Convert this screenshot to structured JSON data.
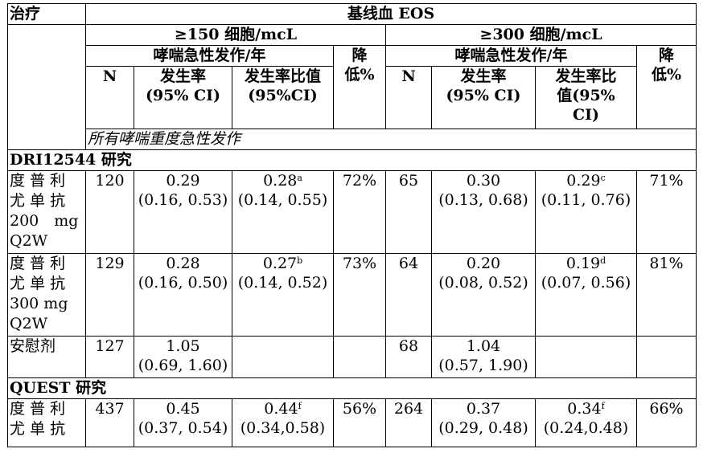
{
  "header": {
    "treatment": "治疗",
    "baseline": "基线血 EOS",
    "group1": "≥150 细胞/mcL",
    "group2": "≥300 细胞/mcL",
    "exacerbation": "哮喘急性发作/年",
    "reduction_l1": "降",
    "reduction_l2": "低%",
    "n": "N",
    "rate_l1": "发生率",
    "rate_l2": "(95% CI)",
    "ratio1_l1": "发生率比值",
    "ratio1_l2": "(95%CI)",
    "ratio2_l1": "发生率比",
    "ratio2_l2": "值(95%",
    "ratio2_l3": "CI)"
  },
  "sections": {
    "all_severe": "所有哮喘重度急性发作",
    "dri": "DRI12544 研究",
    "quest": "QUEST 研究"
  },
  "rows": [
    {
      "treatment_lines": [
        "度 普 利",
        "尤 单 抗",
        "200　mg",
        "Q2W"
      ],
      "n1": "120",
      "rate1": "0.29",
      "ci1": "(0.16, 0.53)",
      "ratio1": "0.28",
      "sup1": "a",
      "rci1": "(0.14, 0.55)",
      "red1": "72%",
      "n2": "65",
      "rate2": "0.30",
      "ci2": "(0.13, 0.68)",
      "ratio2": "0.29",
      "sup2": "c",
      "rci2": "(0.11, 0.76)",
      "red2": "71%"
    },
    {
      "treatment_lines": [
        "度 普 利",
        "尤 单 抗",
        "300 mg",
        "Q2W"
      ],
      "n1": "129",
      "rate1": "0.28",
      "ci1": "(0.16, 0.50)",
      "ratio1": "0.27",
      "sup1": "b",
      "rci1": "(0.14, 0.52)",
      "red1": "73%",
      "n2": "64",
      "rate2": "0.20",
      "ci2": "(0.08, 0.52)",
      "ratio2": "0.19",
      "sup2": "d",
      "rci2": "(0.07, 0.56)",
      "red2": "81%"
    },
    {
      "treatment_lines": [
        "安慰剂"
      ],
      "n1": "127",
      "rate1": "1.05",
      "ci1": "(0.69, 1.60)",
      "n2": "68",
      "rate2": "1.04",
      "ci2": "(0.57, 1.90)"
    },
    {
      "treatment_lines": [
        "度 普 利",
        "尤 单 抗"
      ],
      "n1": "437",
      "rate1": "0.45",
      "ci1": "(0.37, 0.54)",
      "ratio1": "0.44",
      "sup1": "f",
      "rci1": "(0.34,0.58)",
      "red1": "56%",
      "n2": "264",
      "rate2": "0.37",
      "ci2": "(0.29, 0.48)",
      "ratio2": "0.34",
      "sup2": "f",
      "rci2": "(0.24,0.48)",
      "red2": "66%"
    }
  ]
}
